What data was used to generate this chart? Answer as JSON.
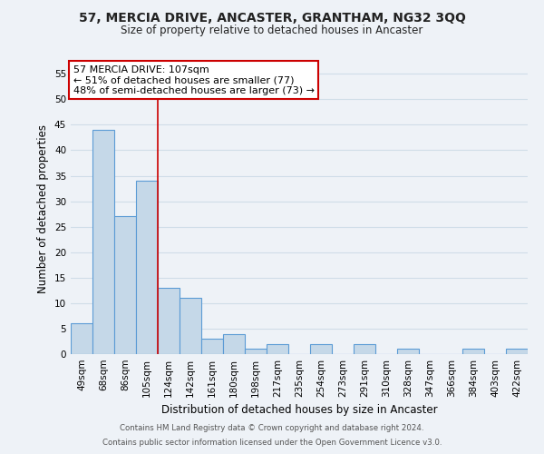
{
  "title1": "57, MERCIA DRIVE, ANCASTER, GRANTHAM, NG32 3QQ",
  "title2": "Size of property relative to detached houses in Ancaster",
  "xlabel": "Distribution of detached houses by size in Ancaster",
  "ylabel": "Number of detached properties",
  "bar_labels": [
    "49sqm",
    "68sqm",
    "86sqm",
    "105sqm",
    "124sqm",
    "142sqm",
    "161sqm",
    "180sqm",
    "198sqm",
    "217sqm",
    "235sqm",
    "254sqm",
    "273sqm",
    "291sqm",
    "310sqm",
    "328sqm",
    "347sqm",
    "366sqm",
    "384sqm",
    "403sqm",
    "422sqm"
  ],
  "bar_values": [
    6,
    44,
    27,
    34,
    13,
    11,
    3,
    4,
    1,
    2,
    0,
    2,
    0,
    2,
    0,
    1,
    0,
    0,
    1,
    0,
    1
  ],
  "bar_color": "#c5d8e8",
  "bar_edge_color": "#5b9bd5",
  "property_line_x": 3.5,
  "annotation_line1": "57 MERCIA DRIVE: 107sqm",
  "annotation_line2": "← 51% of detached houses are smaller (77)",
  "annotation_line3": "48% of semi-detached houses are larger (73) →",
  "annotation_box_color": "#ffffff",
  "annotation_box_edge_color": "#cc0000",
  "ylim": [
    0,
    57
  ],
  "yticks": [
    0,
    5,
    10,
    15,
    20,
    25,
    30,
    35,
    40,
    45,
    50,
    55
  ],
  "grid_color": "#d0dde8",
  "background_color": "#eef2f7",
  "footer1": "Contains HM Land Registry data © Crown copyright and database right 2024.",
  "footer2": "Contains public sector information licensed under the Open Government Licence v3.0."
}
